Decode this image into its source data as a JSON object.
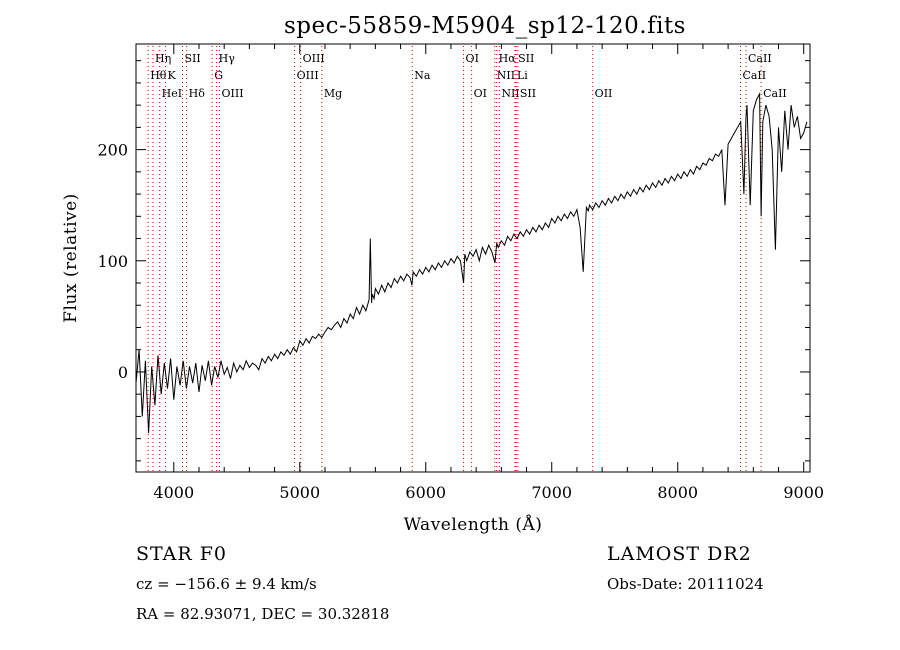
{
  "chart_data": {
    "type": "line",
    "title": "spec-55859-M5904_sp12-120.fits",
    "xlabel": "Wavelength (Å)",
    "ylabel": "Flux (relative)",
    "xlim": [
      3700,
      9050
    ],
    "ylim": [
      -90,
      295
    ],
    "xticks": [
      4000,
      5000,
      6000,
      7000,
      8000,
      9000
    ],
    "yticks": [
      0,
      100,
      200
    ],
    "grid": false,
    "line_color": "#000000",
    "marker_color": "#cc0000",
    "series": [
      {
        "x": [
          3700,
          3725,
          3750,
          3775,
          3800,
          3825,
          3850,
          3875,
          3900,
          3925,
          3950,
          3975,
          4000,
          4025,
          4050,
          4075,
          4100,
          4125,
          4150,
          4175,
          4200,
          4225,
          4250,
          4275,
          4300,
          4325,
          4350,
          4375,
          4400,
          4425,
          4450,
          4475,
          4500,
          4525,
          4550,
          4575,
          4600,
          4625,
          4650,
          4675,
          4700,
          4725,
          4750,
          4775,
          4800,
          4825,
          4850,
          4875,
          4900,
          4925,
          4950,
          4975,
          5000,
          5025,
          5050,
          5075,
          5100,
          5125,
          5150,
          5175,
          5200,
          5225,
          5250,
          5275,
          5300,
          5325,
          5350,
          5375,
          5400,
          5425,
          5450,
          5475,
          5500,
          5525,
          5550,
          5560,
          5570,
          5575,
          5590,
          5600,
          5625,
          5650,
          5675,
          5700,
          5725,
          5750,
          5775,
          5800,
          5825,
          5850,
          5875,
          5890,
          5900,
          5925,
          5950,
          5975,
          6000,
          6025,
          6050,
          6075,
          6100,
          6125,
          6150,
          6175,
          6200,
          6225,
          6250,
          6275,
          6300,
          6310,
          6325,
          6350,
          6375,
          6400,
          6425,
          6450,
          6475,
          6500,
          6525,
          6550,
          6563,
          6575,
          6600,
          6625,
          6650,
          6675,
          6700,
          6725,
          6750,
          6775,
          6800,
          6825,
          6850,
          6875,
          6900,
          6925,
          6950,
          6975,
          7000,
          7025,
          7050,
          7075,
          7100,
          7125,
          7150,
          7175,
          7200,
          7225,
          7250,
          7275,
          7290,
          7300,
          7325,
          7350,
          7375,
          7400,
          7425,
          7450,
          7475,
          7500,
          7525,
          7550,
          7575,
          7600,
          7625,
          7650,
          7675,
          7700,
          7725,
          7750,
          7775,
          7800,
          7825,
          7850,
          7875,
          7900,
          7925,
          7950,
          7975,
          8000,
          8025,
          8050,
          8075,
          8100,
          8125,
          8150,
          8175,
          8200,
          8225,
          8250,
          8275,
          8300,
          8325,
          8350,
          8375,
          8400,
          8425,
          8450,
          8475,
          8500,
          8525,
          8542,
          8550,
          8575,
          8600,
          8625,
          8650,
          8662,
          8675,
          8700,
          8725,
          8750,
          8775,
          8800,
          8825,
          8850,
          8875,
          8900,
          8925,
          8950,
          8975,
          9000,
          9025
        ],
        "y": [
          -10,
          20,
          -40,
          10,
          -55,
          5,
          -30,
          15,
          -20,
          8,
          -15,
          12,
          -25,
          5,
          -12,
          10,
          -15,
          5,
          -10,
          8,
          -18,
          6,
          -8,
          10,
          -12,
          5,
          -5,
          10,
          -2,
          4,
          -6,
          8,
          0,
          6,
          2,
          10,
          4,
          8,
          6,
          2,
          12,
          8,
          14,
          10,
          16,
          12,
          18,
          15,
          20,
          16,
          22,
          18,
          28,
          24,
          30,
          26,
          32,
          30,
          34,
          31,
          36,
          40,
          38,
          42,
          45,
          40,
          48,
          44,
          52,
          48,
          58,
          52,
          60,
          55,
          65,
          120,
          62,
          70,
          66,
          75,
          70,
          78,
          72,
          80,
          76,
          84,
          80,
          86,
          82,
          88,
          85,
          78,
          90,
          86,
          92,
          88,
          94,
          90,
          96,
          92,
          98,
          94,
          100,
          96,
          102,
          98,
          104,
          100,
          80,
          106,
          100,
          108,
          104,
          110,
          100,
          112,
          106,
          114,
          108,
          98,
          116,
          112,
          118,
          114,
          122,
          118,
          124,
          120,
          126,
          122,
          128,
          124,
          130,
          126,
          132,
          128,
          134,
          130,
          138,
          134,
          140,
          136,
          142,
          138,
          144,
          140,
          146,
          130,
          90,
          148,
          145,
          150,
          146,
          152,
          148,
          154,
          150,
          156,
          152,
          158,
          154,
          160,
          156,
          162,
          158,
          164,
          160,
          166,
          162,
          168,
          164,
          170,
          166,
          172,
          168,
          174,
          170,
          176,
          172,
          178,
          174,
          180,
          176,
          182,
          178,
          185,
          182,
          188,
          186,
          192,
          190,
          196,
          194,
          200,
          150,
          205,
          210,
          215,
          220,
          225,
          160,
          230,
          240,
          150,
          235,
          245,
          250,
          140,
          225,
          240,
          230,
          200,
          110,
          220,
          180,
          235,
          200,
          240,
          220,
          230,
          210,
          215,
          225
        ]
      }
    ],
    "line_markers": [
      {
        "label": "Hη",
        "x": 3835,
        "row": 0
      },
      {
        "label": "Hθ",
        "x": 3797,
        "row": 1
      },
      {
        "label": "HeI",
        "x": 3888,
        "row": 2
      },
      {
        "label": "K",
        "x": 3934,
        "row": 1
      },
      {
        "label": "SII",
        "x": 4069,
        "row": 0
      },
      {
        "label": "Hδ",
        "x": 4102,
        "row": 2
      },
      {
        "label": "Hγ",
        "x": 4340,
        "row": 0
      },
      {
        "label": "G",
        "x": 4305,
        "row": 1
      },
      {
        "label": "OIII",
        "x": 4363,
        "row": 2
      },
      {
        "label": "OIII",
        "x": 5007,
        "row": 0
      },
      {
        "label": "OIII",
        "x": 4959,
        "row": 1
      },
      {
        "label": "Mg",
        "x": 5175,
        "row": 2
      },
      {
        "label": "Na",
        "x": 5893,
        "row": 1
      },
      {
        "label": "OI",
        "x": 6300,
        "row": 0
      },
      {
        "label": "OI",
        "x": 6364,
        "row": 2
      },
      {
        "label": "Hα",
        "x": 6563,
        "row": 0
      },
      {
        "label": "SII",
        "x": 6717,
        "row": 0
      },
      {
        "label": "NII",
        "x": 6548,
        "row": 1
      },
      {
        "label": "Li",
        "x": 6708,
        "row": 1
      },
      {
        "label": "NII",
        "x": 6584,
        "row": 2
      },
      {
        "label": "SII",
        "x": 6731,
        "row": 2
      },
      {
        "label": "OII",
        "x": 7325,
        "row": 2
      },
      {
        "label": "CaII",
        "x": 8542,
        "row": 0
      },
      {
        "label": "CaII",
        "x": 8498,
        "row": 1
      },
      {
        "label": "CaII",
        "x": 8662,
        "row": 2
      }
    ]
  },
  "info": {
    "object": "STAR    F0",
    "survey": "LAMOST DR2",
    "redshift": "cz = −156.6 ± 9.4 km/s",
    "obs_date": "Obs-Date: 20111024",
    "coords": "RA =  82.93071, DEC =  30.32818"
  }
}
